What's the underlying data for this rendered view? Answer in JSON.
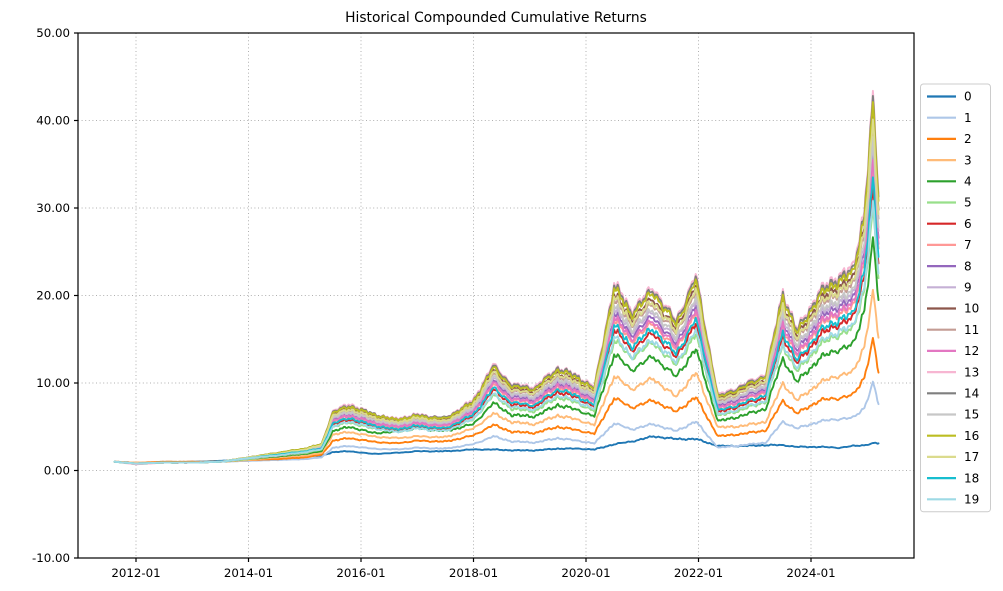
{
  "chart_data": {
    "type": "line",
    "title": "Historical Compounded Cumulative Returns",
    "xlabel": "",
    "ylabel": "",
    "x_unit": "decimal_year",
    "xlim_years": [
      2010.97,
      2025.83
    ],
    "ylim": [
      -10,
      50
    ],
    "grid": true,
    "grid_style": "dotted",
    "grid_color": "#b0b0b0",
    "spine_color": "#000000",
    "legend_position": "outside-right",
    "legend_border_color": "#cccccc",
    "legend_background": "#ffffff",
    "y_ticks": [
      {
        "value": -10,
        "label": "-10.00"
      },
      {
        "value": 0,
        "label": "0.00"
      },
      {
        "value": 10,
        "label": "10.00"
      },
      {
        "value": 20,
        "label": "20.00"
      },
      {
        "value": 30,
        "label": "30.00"
      },
      {
        "value": 40,
        "label": "40.00"
      },
      {
        "value": 50,
        "label": "50.00"
      }
    ],
    "x_ticks": [
      {
        "year": 2012,
        "label": "2012-01"
      },
      {
        "year": 2014,
        "label": "2014-01"
      },
      {
        "year": 2016,
        "label": "2016-01"
      },
      {
        "year": 2018,
        "label": "2018-01"
      },
      {
        "year": 2020,
        "label": "2020-01"
      },
      {
        "year": 2022,
        "label": "2022-01"
      },
      {
        "year": 2024,
        "label": "2024-01"
      }
    ],
    "x": [
      2011.62,
      2012.0,
      2012.5,
      2013.0,
      2013.5,
      2014.0,
      2014.5,
      2015.0,
      2015.3,
      2015.5,
      2015.8,
      2016.2,
      2016.6,
      2017.0,
      2017.5,
      2018.0,
      2018.35,
      2018.7,
      2019.1,
      2019.5,
      2019.85,
      2020.15,
      2020.5,
      2020.8,
      2021.2,
      2021.6,
      2021.95,
      2022.35,
      2022.8,
      2023.2,
      2023.5,
      2023.75,
      2024.15,
      2024.5,
      2024.75,
      2024.95,
      2025.1,
      2025.2
    ],
    "series": [
      {
        "name": "0",
        "color": "#1f77b4",
        "values": [
          1.0,
          0.9,
          0.9,
          1.0,
          1.1,
          1.3,
          1.5,
          1.6,
          1.7,
          2.1,
          2.2,
          1.9,
          2.0,
          2.2,
          2.2,
          2.4,
          2.4,
          2.3,
          2.3,
          2.5,
          2.5,
          2.4,
          3.0,
          3.3,
          3.9,
          3.6,
          3.6,
          2.8,
          2.8,
          2.9,
          2.9,
          2.7,
          2.7,
          2.6,
          2.8,
          2.9,
          3.1,
          3.1
        ]
      },
      {
        "name": "1",
        "color": "#aec7e8",
        "values": [
          1.0,
          0.9,
          1.0,
          1.0,
          1.0,
          1.1,
          1.2,
          1.3,
          1.5,
          2.6,
          2.8,
          2.5,
          2.4,
          2.6,
          2.5,
          3.0,
          3.9,
          3.3,
          3.2,
          3.7,
          3.4,
          3.1,
          5.4,
          4.7,
          5.3,
          4.5,
          5.6,
          2.6,
          2.9,
          3.2,
          5.6,
          4.8,
          5.6,
          5.9,
          6.0,
          7.2,
          10.0,
          7.6
        ]
      },
      {
        "name": "2",
        "color": "#ff7f0e",
        "values": [
          1.0,
          0.9,
          1.0,
          1.0,
          1.0,
          1.2,
          1.3,
          1.5,
          1.8,
          3.4,
          3.7,
          3.3,
          3.1,
          3.4,
          3.3,
          4.0,
          5.2,
          4.4,
          4.3,
          5.0,
          4.6,
          4.2,
          8.3,
          7.2,
          8.0,
          6.7,
          8.4,
          3.9,
          4.2,
          4.6,
          8.0,
          6.5,
          8.0,
          8.3,
          8.6,
          10.7,
          14.9,
          11.2
        ]
      },
      {
        "name": "3",
        "color": "#ffbb78",
        "values": [
          1.0,
          0.9,
          0.9,
          0.9,
          1.0,
          1.2,
          1.5,
          1.7,
          2.0,
          4.1,
          4.4,
          3.9,
          3.7,
          3.9,
          3.8,
          4.8,
          6.5,
          5.5,
          5.3,
          6.3,
          5.8,
          5.2,
          10.8,
          9.3,
          10.5,
          8.4,
          11.2,
          4.9,
          5.1,
          5.6,
          10.0,
          8.0,
          10.0,
          10.9,
          11.2,
          14.3,
          20.3,
          15.2
        ]
      },
      {
        "name": "4",
        "color": "#2ca02c",
        "values": [
          1.0,
          0.8,
          0.9,
          0.9,
          1.0,
          1.3,
          1.6,
          1.9,
          2.2,
          4.5,
          5.0,
          4.3,
          4.4,
          4.8,
          4.5,
          5.3,
          7.7,
          6.3,
          6.2,
          7.5,
          6.9,
          6.2,
          13.3,
          11.5,
          13.0,
          10.7,
          13.9,
          5.6,
          6.3,
          7.1,
          12.8,
          10.1,
          12.8,
          13.9,
          14.3,
          18.5,
          26.2,
          19.5
        ]
      },
      {
        "name": "5",
        "color": "#98df8a",
        "values": [
          1.0,
          0.8,
          0.9,
          0.9,
          1.0,
          1.3,
          1.7,
          2.0,
          2.4,
          5.0,
          5.5,
          4.8,
          4.7,
          5.0,
          4.7,
          5.8,
          8.6,
          7.0,
          6.8,
          8.4,
          7.7,
          6.8,
          14.9,
          12.9,
          14.6,
          12.0,
          15.6,
          6.2,
          7.0,
          7.9,
          14.3,
          11.3,
          14.3,
          15.6,
          16.1,
          20.8,
          29.6,
          22.0
        ]
      },
      {
        "name": "6",
        "color": "#d62728",
        "values": [
          1.0,
          0.8,
          0.9,
          0.9,
          1.0,
          1.4,
          1.7,
          2.1,
          2.5,
          5.3,
          5.8,
          5.1,
          4.6,
          5.0,
          4.7,
          6.2,
          9.2,
          7.5,
          7.3,
          9.0,
          8.3,
          7.3,
          16.1,
          13.8,
          15.7,
          12.9,
          16.8,
          6.6,
          7.5,
          8.4,
          15.4,
          12.2,
          15.4,
          16.8,
          17.3,
          22.4,
          31.9,
          23.7
        ]
      },
      {
        "name": "7",
        "color": "#ff9896",
        "values": [
          1.0,
          0.8,
          0.9,
          0.9,
          1.0,
          1.4,
          1.8,
          2.2,
          2.6,
          5.6,
          6.2,
          5.4,
          4.9,
          5.3,
          5.0,
          6.6,
          9.8,
          8.0,
          7.8,
          9.6,
          8.8,
          7.8,
          17.2,
          14.8,
          16.8,
          13.8,
          18.0,
          7.0,
          8.0,
          9.0,
          16.5,
          13.0,
          16.5,
          18.0,
          18.5,
          24.0,
          34.2,
          25.4
        ]
      },
      {
        "name": "8",
        "color": "#9467bd",
        "values": [
          1.0,
          0.8,
          0.9,
          0.9,
          1.0,
          1.4,
          1.8,
          2.3,
          2.7,
          5.8,
          6.5,
          5.6,
          5.1,
          5.5,
          5.2,
          6.9,
          10.2,
          8.4,
          8.1,
          10.0,
          9.2,
          8.1,
          18.0,
          15.5,
          17.6,
          14.4,
          18.9,
          7.3,
          8.4,
          9.4,
          17.3,
          13.6,
          17.3,
          18.9,
          19.4,
          25.2,
          35.9,
          26.6
        ]
      },
      {
        "name": "9",
        "color": "#c5b0d5",
        "values": [
          1.0,
          0.8,
          0.9,
          0.9,
          1.0,
          1.4,
          1.9,
          2.3,
          2.7,
          6.0,
          6.6,
          5.8,
          5.2,
          5.6,
          5.3,
          7.0,
          10.5,
          8.6,
          8.3,
          10.3,
          9.4,
          8.3,
          18.5,
          15.9,
          18.1,
          14.8,
          19.4,
          7.5,
          8.6,
          9.6,
          17.7,
          14.0,
          17.7,
          19.4,
          19.9,
          25.8,
          36.9,
          27.4
        ]
      },
      {
        "name": "10",
        "color": "#8c564b",
        "values": [
          1.0,
          0.8,
          0.9,
          0.9,
          1.0,
          1.5,
          1.9,
          2.4,
          2.9,
          6.4,
          7.1,
          6.2,
          5.6,
          6.1,
          5.7,
          7.6,
          11.4,
          9.3,
          9.0,
          11.1,
          10.2,
          9.0,
          20.1,
          17.3,
          19.6,
          16.1,
          21.1,
          8.1,
          9.3,
          10.4,
          19.3,
          15.2,
          19.3,
          21.1,
          21.7,
          28.1,
          40.2,
          29.8
        ]
      },
      {
        "name": "11",
        "color": "#c49c94",
        "values": [
          1.0,
          0.8,
          0.9,
          0.9,
          1.0,
          1.5,
          1.9,
          2.4,
          2.8,
          6.2,
          6.9,
          6.0,
          5.4,
          5.9,
          5.6,
          7.4,
          11.0,
          9.0,
          8.8,
          10.8,
          9.9,
          8.8,
          19.5,
          16.7,
          19.0,
          15.6,
          20.4,
          7.8,
          9.0,
          10.1,
          18.7,
          14.7,
          18.7,
          20.4,
          21.0,
          27.2,
          38.8,
          28.8
        ]
      },
      {
        "name": "12",
        "color": "#e377c2",
        "values": [
          1.0,
          0.8,
          0.9,
          0.9,
          1.0,
          1.4,
          1.8,
          2.2,
          2.6,
          5.7,
          6.3,
          5.5,
          5.0,
          5.4,
          5.1,
          6.7,
          10.0,
          8.1,
          7.9,
          9.8,
          9.0,
          7.9,
          17.5,
          15.1,
          17.1,
          14.1,
          18.3,
          7.1,
          8.1,
          9.2,
          16.8,
          13.2,
          16.8,
          18.3,
          18.9,
          24.5,
          34.9,
          25.9
        ]
      },
      {
        "name": "13",
        "color": "#f7b6d2",
        "values": [
          1.0,
          0.7,
          0.9,
          0.9,
          1.0,
          1.5,
          2.0,
          2.5,
          3.0,
          6.8,
          7.6,
          6.5,
          5.9,
          6.4,
          6.0,
          8.1,
          12.1,
          9.8,
          9.6,
          11.8,
          10.8,
          9.6,
          21.4,
          18.4,
          20.9,
          17.1,
          22.4,
          8.6,
          9.8,
          11.1,
          20.5,
          16.1,
          20.5,
          22.4,
          23.1,
          30.0,
          42.8,
          31.7
        ]
      },
      {
        "name": "14",
        "color": "#7f7f7f",
        "values": [
          1.0,
          0.8,
          0.9,
          0.9,
          1.0,
          1.5,
          2.0,
          2.5,
          3.0,
          6.7,
          7.4,
          6.5,
          5.8,
          6.3,
          6.0,
          7.9,
          11.9,
          9.7,
          9.4,
          11.7,
          10.7,
          9.4,
          21.1,
          18.1,
          20.6,
          16.9,
          22.1,
          8.4,
          9.7,
          10.9,
          20.2,
          15.9,
          20.2,
          22.1,
          22.7,
          29.5,
          42.2,
          31.3
        ]
      },
      {
        "name": "15",
        "color": "#c7c7c7",
        "values": [
          1.0,
          0.8,
          0.9,
          0.9,
          1.0,
          1.4,
          1.9,
          2.3,
          2.8,
          6.1,
          6.7,
          5.8,
          5.3,
          5.7,
          5.4,
          7.2,
          10.7,
          8.7,
          8.5,
          10.5,
          9.6,
          8.5,
          18.8,
          16.2,
          18.4,
          15.1,
          19.7,
          7.6,
          8.7,
          9.8,
          18.1,
          14.2,
          18.1,
          19.7,
          20.3,
          26.3,
          37.5,
          27.8
        ]
      },
      {
        "name": "16",
        "color": "#bcbd22",
        "values": [
          1.0,
          0.8,
          0.9,
          0.9,
          1.0,
          1.5,
          2.0,
          2.5,
          3.0,
          6.6,
          7.3,
          6.4,
          5.8,
          6.2,
          5.9,
          7.8,
          11.7,
          9.5,
          9.3,
          11.5,
          10.5,
          9.3,
          20.8,
          17.8,
          20.3,
          16.6,
          21.7,
          8.3,
          9.5,
          10.8,
          19.9,
          15.6,
          19.9,
          21.7,
          22.4,
          29.1,
          41.5,
          30.8
        ]
      },
      {
        "name": "17",
        "color": "#dbdb8d",
        "values": [
          1.0,
          0.8,
          0.9,
          0.9,
          1.0,
          1.5,
          1.9,
          2.4,
          2.9,
          6.3,
          7.0,
          6.1,
          5.5,
          6.0,
          5.6,
          7.5,
          11.2,
          9.1,
          8.9,
          11.0,
          10.0,
          8.9,
          19.8,
          17.0,
          19.3,
          15.8,
          20.7,
          8.0,
          9.1,
          10.3,
          19.0,
          14.9,
          19.0,
          20.7,
          21.3,
          27.7,
          39.5,
          29.3
        ]
      },
      {
        "name": "18",
        "color": "#17becf",
        "values": [
          1.0,
          0.8,
          0.9,
          0.9,
          1.0,
          1.4,
          1.8,
          2.2,
          2.5,
          5.4,
          6.0,
          5.2,
          4.7,
          5.1,
          4.8,
          6.4,
          9.4,
          7.7,
          7.5,
          9.3,
          8.5,
          7.5,
          16.6,
          14.2,
          16.2,
          13.3,
          17.3,
          6.8,
          7.7,
          8.7,
          15.9,
          12.5,
          15.9,
          17.3,
          17.8,
          23.1,
          32.9,
          24.4
        ]
      },
      {
        "name": "19",
        "color": "#9edae5",
        "values": [
          1.0,
          0.8,
          0.9,
          0.9,
          1.0,
          1.4,
          1.7,
          2.1,
          2.4,
          5.0,
          5.6,
          4.9,
          4.4,
          4.8,
          4.5,
          5.9,
          8.7,
          7.2,
          7.0,
          8.6,
          7.9,
          7.0,
          15.3,
          13.1,
          14.9,
          12.3,
          16.0,
          6.3,
          7.2,
          8.0,
          14.6,
          11.6,
          14.6,
          16.0,
          16.4,
          21.2,
          30.2,
          22.5
        ]
      }
    ]
  }
}
